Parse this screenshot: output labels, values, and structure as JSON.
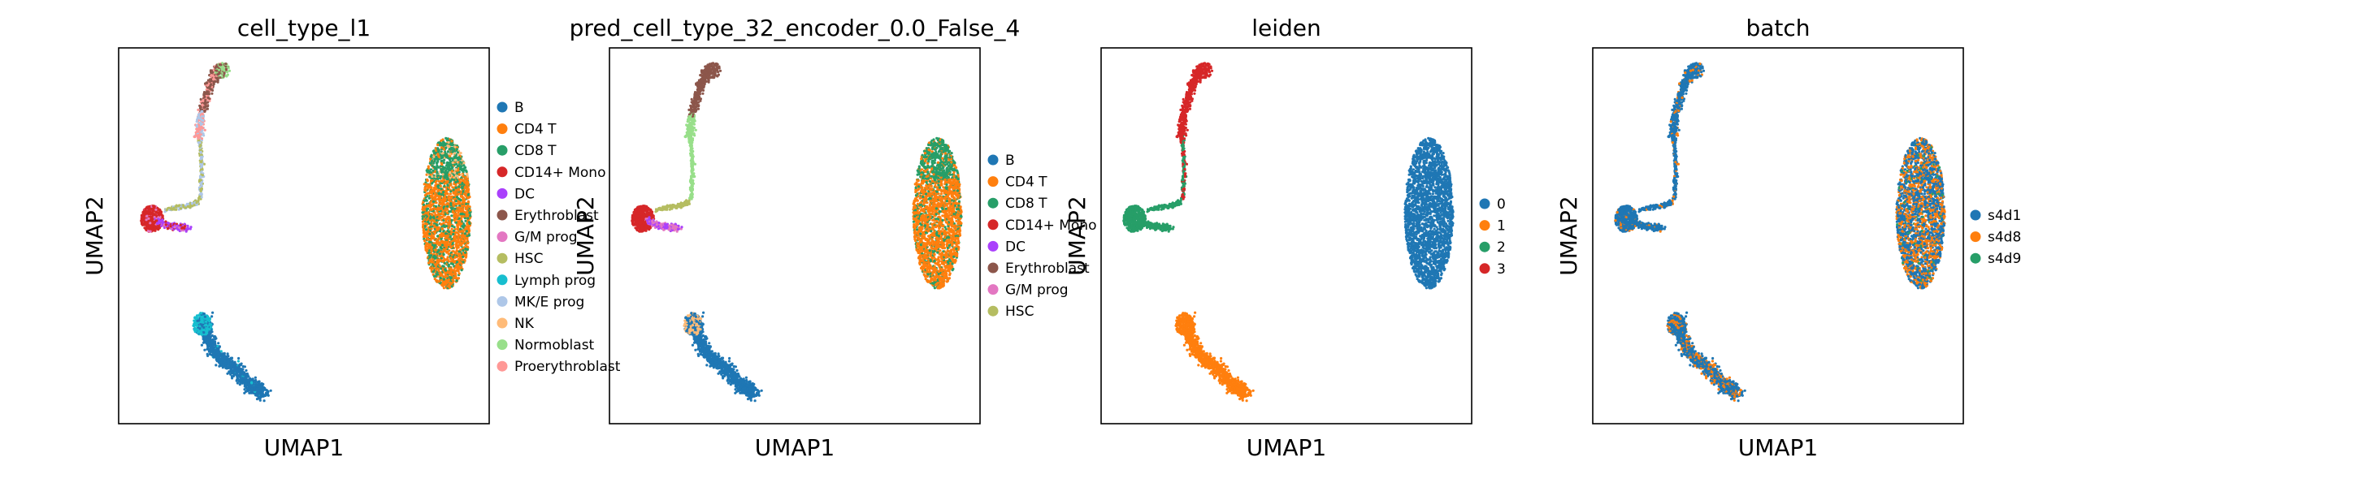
{
  "chart_data": [
    {
      "type": "scatter",
      "title": "cell_type_l1",
      "xlabel": "UMAP1",
      "ylabel": "UMAP2",
      "legend_placement": "right",
      "grid": false,
      "axis_ticks": false,
      "categories": [
        {
          "name": "B",
          "color": "#1f77b4"
        },
        {
          "name": "CD4 T",
          "color": "#ff7f0e"
        },
        {
          "name": "CD8 T",
          "color": "#279e68"
        },
        {
          "name": "CD14+ Mono",
          "color": "#d62728"
        },
        {
          "name": "DC",
          "color": "#aa40fc"
        },
        {
          "name": "Erythroblast",
          "color": "#8c564b"
        },
        {
          "name": "G/M prog",
          "color": "#e377c2"
        },
        {
          "name": "HSC",
          "color": "#b5bd61"
        },
        {
          "name": "Lymph prog",
          "color": "#17becf"
        },
        {
          "name": "MK/E prog",
          "color": "#aec7e8"
        },
        {
          "name": "NK",
          "color": "#ffbb78"
        },
        {
          "name": "Normoblast",
          "color": "#98df8a"
        },
        {
          "name": "Proerythroblast",
          "color": "#ff9896"
        }
      ]
    },
    {
      "type": "scatter",
      "title": "pred_cell_type_32_encoder_0.0_False_4",
      "xlabel": "UMAP1",
      "ylabel": "UMAP2",
      "legend_placement": "right",
      "grid": false,
      "axis_ticks": false,
      "categories": [
        {
          "name": "B",
          "color": "#1f77b4"
        },
        {
          "name": "CD4 T",
          "color": "#ff7f0e"
        },
        {
          "name": "CD8 T",
          "color": "#279e68"
        },
        {
          "name": "CD14+ Mono",
          "color": "#d62728"
        },
        {
          "name": "DC",
          "color": "#aa40fc"
        },
        {
          "name": "Erythroblast",
          "color": "#8c564b"
        },
        {
          "name": "G/M prog",
          "color": "#e377c2"
        },
        {
          "name": "HSC",
          "color": "#b5bd61"
        }
      ]
    },
    {
      "type": "scatter",
      "title": "leiden",
      "xlabel": "UMAP1",
      "ylabel": "UMAP2",
      "legend_placement": "right",
      "grid": false,
      "axis_ticks": false,
      "categories": [
        {
          "name": "0",
          "color": "#1f77b4"
        },
        {
          "name": "1",
          "color": "#ff7f0e"
        },
        {
          "name": "2",
          "color": "#279e68"
        },
        {
          "name": "3",
          "color": "#d62728"
        }
      ]
    },
    {
      "type": "scatter",
      "title": "batch",
      "xlabel": "UMAP1",
      "ylabel": "UMAP2",
      "legend_placement": "right",
      "grid": false,
      "axis_ticks": false,
      "categories": [
        {
          "name": "s4d1",
          "color": "#1f77b4"
        },
        {
          "name": "s4d8",
          "color": "#ff7f0e"
        },
        {
          "name": "s4d9",
          "color": "#279e68"
        }
      ]
    }
  ]
}
